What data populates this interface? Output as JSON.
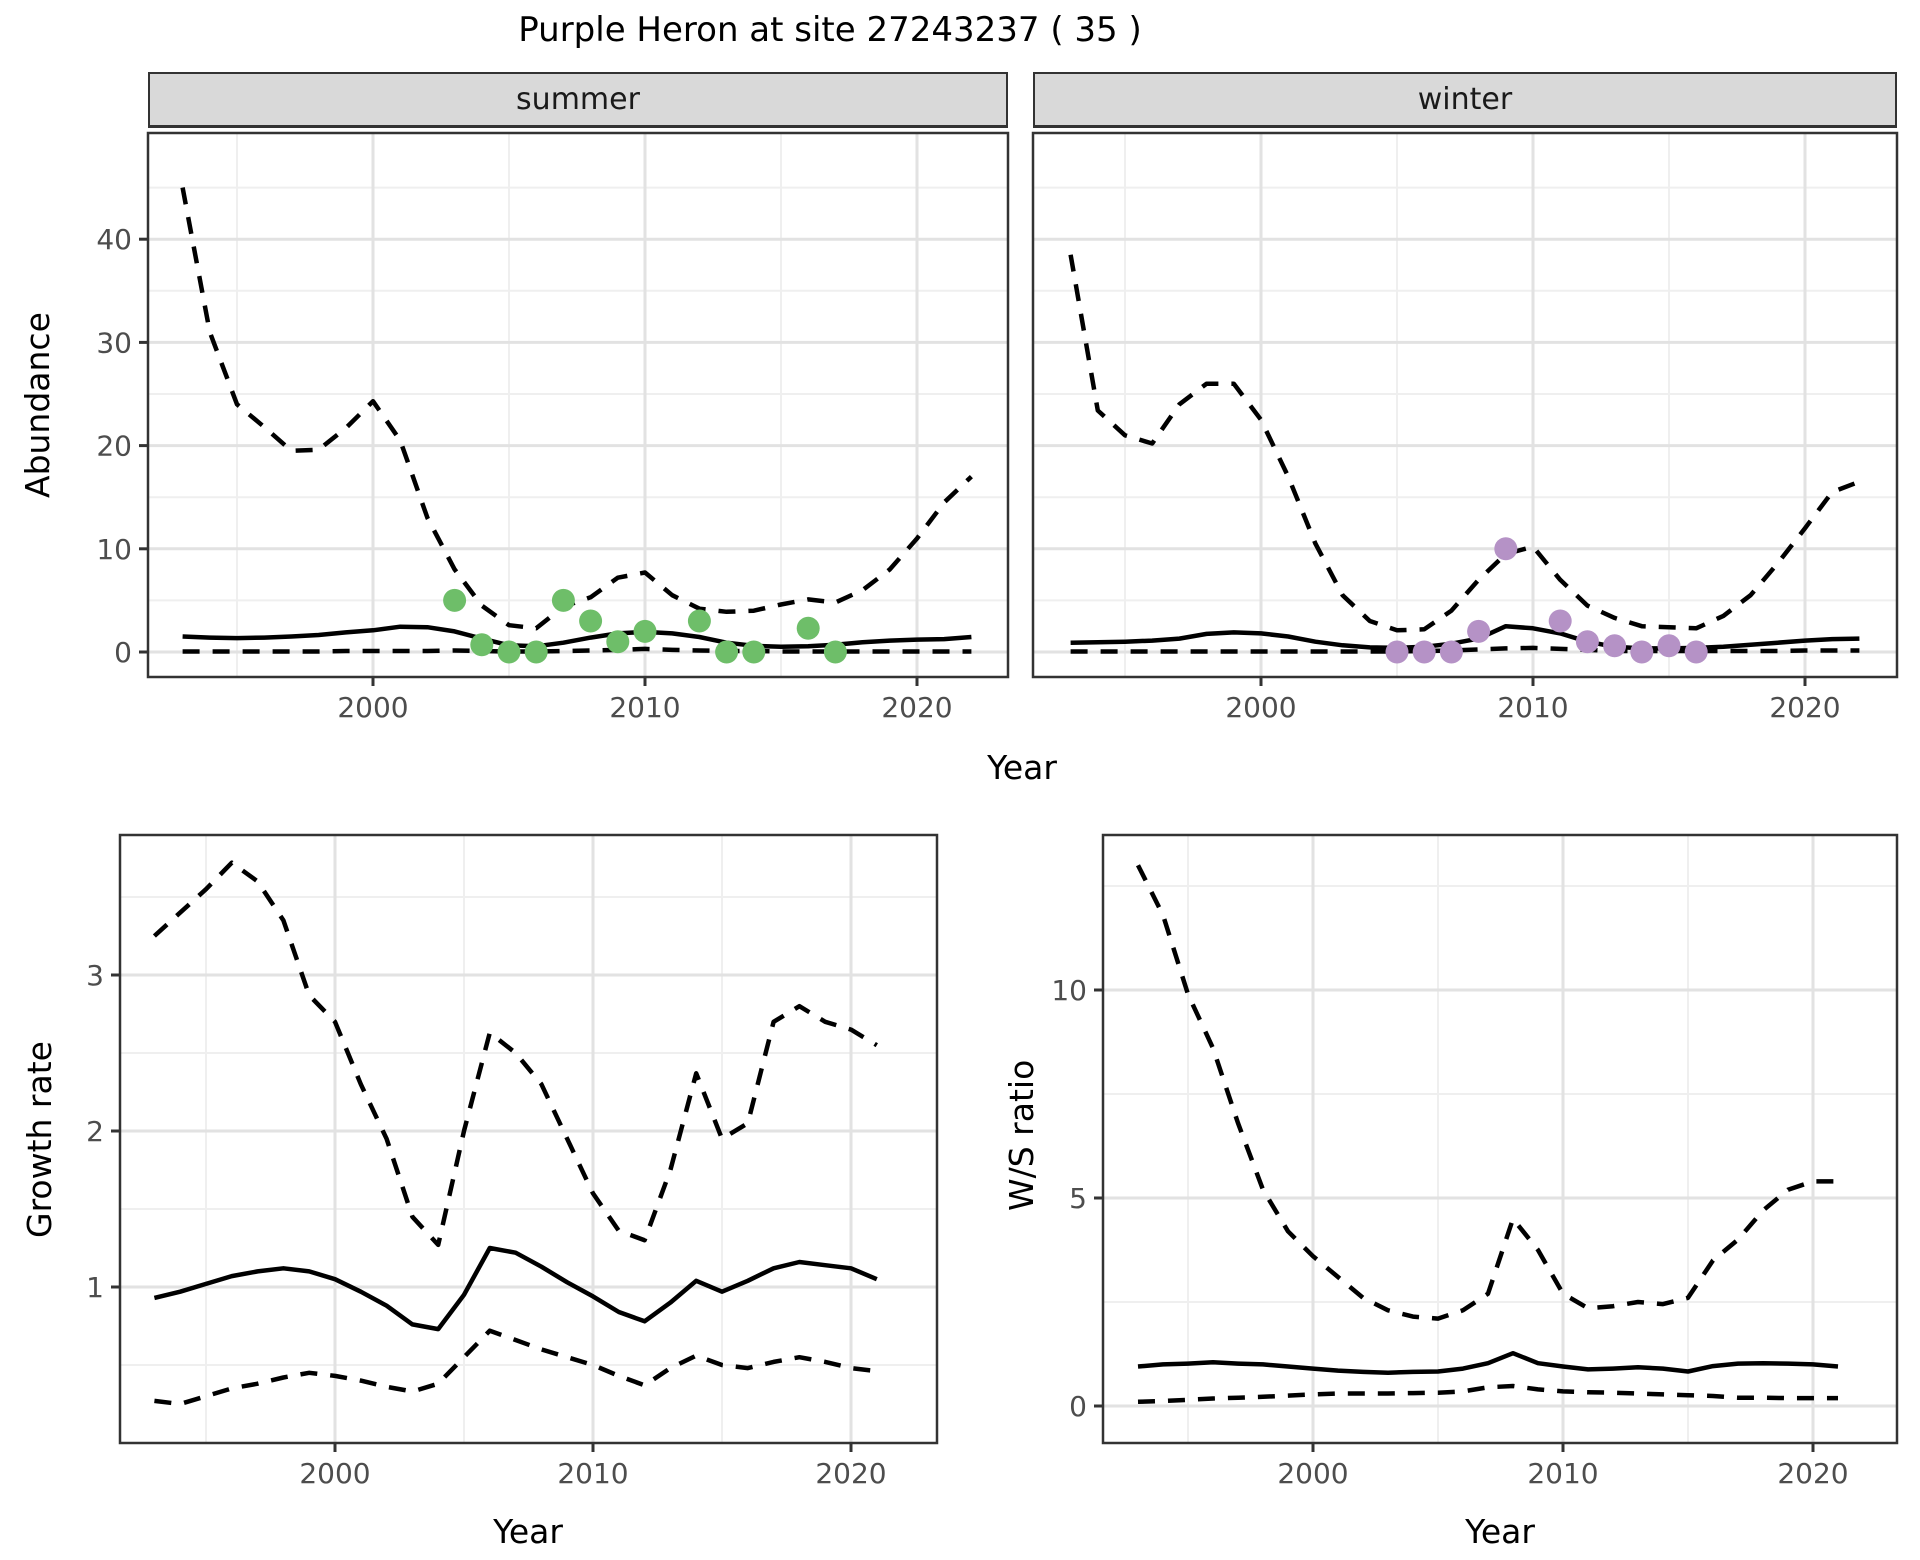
{
  "title": "Purple Heron at site 27243237 ( 35 )",
  "colors": {
    "summer_points": "#6ebe69",
    "winter_points": "#b592c6",
    "lines": "#000000",
    "strip_background": "#d9d9d9",
    "tick_text": "#4d4d4d"
  },
  "chart_data": [
    {
      "id": "abundance-summer",
      "type": "line",
      "facet_label": "summer",
      "ylabel": "Abundance",
      "xlabel": "Year",
      "xticks": [
        2000,
        2010,
        2020
      ],
      "yticks": [
        0,
        10,
        20,
        30,
        40
      ],
      "xticks_minor": [
        1995,
        2005,
        2015
      ],
      "yticks_minor": [
        5,
        15,
        25,
        35,
        45
      ],
      "xlim": [
        1991.7,
        2023.1
      ],
      "ylim": [
        -2.4,
        50.3
      ],
      "grid": true,
      "legend": "none",
      "x": [
        1993,
        1994,
        1995,
        1996,
        1997,
        1998,
        1999,
        2000,
        2001,
        2002,
        2003,
        2004,
        2005,
        2006,
        2007,
        2008,
        2009,
        2010,
        2011,
        2012,
        2013,
        2014,
        2015,
        2016,
        2017,
        2018,
        2019,
        2020,
        2021,
        2022
      ],
      "series": [
        {
          "name": "upper-ci",
          "style": "dashed",
          "values": [
            45,
            31,
            24,
            21.8,
            19.5,
            19.6,
            21.7,
            24.3,
            20.5,
            13,
            8,
            4.5,
            2.6,
            2.3,
            4.4,
            5.3,
            7.2,
            7.7,
            5.5,
            4.2,
            3.9,
            4.0,
            4.6,
            5.1,
            4.8,
            6.0,
            8.0,
            11.0,
            14.5,
            17.0
          ]
        },
        {
          "name": "mean",
          "style": "solid",
          "values": [
            1.5,
            1.4,
            1.35,
            1.4,
            1.5,
            1.65,
            1.9,
            2.1,
            2.45,
            2.4,
            2.0,
            1.3,
            0.65,
            0.55,
            0.9,
            1.4,
            1.8,
            1.95,
            1.8,
            1.45,
            0.9,
            0.6,
            0.5,
            0.55,
            0.7,
            0.95,
            1.1,
            1.2,
            1.25,
            1.45
          ]
        },
        {
          "name": "lower-ci",
          "style": "dashed",
          "values": [
            0.05,
            0.05,
            0.05,
            0.05,
            0.05,
            0.05,
            0.1,
            0.1,
            0.1,
            0.1,
            0.15,
            0.1,
            0.05,
            0.05,
            0.1,
            0.15,
            0.2,
            0.3,
            0.2,
            0.15,
            0.1,
            0.1,
            0.05,
            0.05,
            0.05,
            0.05,
            0.05,
            0.05,
            0.05,
            0.05
          ]
        }
      ],
      "points": {
        "name": "observed-counts",
        "color": "#6ebe69",
        "x": [
          2003,
          2004,
          2005,
          2006,
          2007,
          2008,
          2009,
          2010,
          2012,
          2013,
          2014,
          2016,
          2017
        ],
        "y": [
          5,
          0.7,
          0,
          0,
          5,
          3,
          1,
          2,
          3,
          0,
          0,
          2.3,
          0
        ]
      }
    },
    {
      "id": "abundance-winter",
      "type": "line",
      "facet_label": "winter",
      "ylabel": "Abundance",
      "xlabel": "Year",
      "xticks": [
        2000,
        2010,
        2020
      ],
      "yticks": [
        0,
        10,
        20,
        30,
        40
      ],
      "xticks_minor": [
        1995,
        2005,
        2015
      ],
      "yticks_minor": [
        5,
        15,
        25,
        35,
        45
      ],
      "xlim": [
        1991.7,
        2023.1
      ],
      "ylim": [
        -2.4,
        50.3
      ],
      "grid": true,
      "legend": "none",
      "x": [
        1993,
        1994,
        1995,
        1996,
        1997,
        1998,
        1999,
        2000,
        2001,
        2002,
        2003,
        2004,
        2005,
        2006,
        2007,
        2008,
        2009,
        2010,
        2011,
        2012,
        2013,
        2014,
        2015,
        2016,
        2017,
        2018,
        2019,
        2020,
        2021,
        2022
      ],
      "series": [
        {
          "name": "upper-ci",
          "style": "dashed",
          "values": [
            38.5,
            23.4,
            21,
            20.2,
            24,
            26,
            26,
            22.5,
            17,
            10.5,
            5.5,
            3,
            2.1,
            2.2,
            4,
            7,
            9.5,
            10.2,
            7,
            4.5,
            3.3,
            2.5,
            2.4,
            2.3,
            3.5,
            5.5,
            8.6,
            12,
            15.5,
            16.5
          ]
        },
        {
          "name": "mean",
          "style": "solid",
          "values": [
            0.9,
            0.95,
            1.0,
            1.1,
            1.3,
            1.75,
            1.9,
            1.8,
            1.5,
            1.0,
            0.65,
            0.45,
            0.4,
            0.5,
            0.8,
            1.3,
            2.5,
            2.3,
            1.8,
            1.0,
            0.5,
            0.35,
            0.35,
            0.4,
            0.5,
            0.7,
            0.9,
            1.1,
            1.25,
            1.3
          ]
        },
        {
          "name": "lower-ci",
          "style": "dashed",
          "values": [
            0.05,
            0.05,
            0.05,
            0.05,
            0.05,
            0.05,
            0.05,
            0.05,
            0.05,
            0.05,
            0.05,
            0.05,
            0.05,
            0.1,
            0.15,
            0.25,
            0.35,
            0.4,
            0.3,
            0.2,
            0.1,
            0.1,
            0.1,
            0.1,
            0.1,
            0.1,
            0.1,
            0.15,
            0.15,
            0.15
          ]
        }
      ],
      "points": {
        "name": "observed-counts",
        "color": "#b592c6",
        "x": [
          2005,
          2006,
          2007,
          2008,
          2009,
          2011,
          2012,
          2013,
          2014,
          2015,
          2016
        ],
        "y": [
          0,
          0,
          0,
          2,
          10,
          3,
          1,
          0.6,
          0,
          0.6,
          0
        ]
      }
    },
    {
      "id": "growth-rate",
      "type": "line",
      "facet_label": "",
      "ylabel": "Growth rate",
      "xlabel": "Year",
      "xticks": [
        2000,
        2010,
        2020
      ],
      "yticks": [
        1,
        2,
        3
      ],
      "xticks_minor": [
        1995,
        2005,
        2015
      ],
      "yticks_minor": [
        0.5,
        1.5,
        2.5,
        3.5
      ],
      "xlim": [
        1991.7,
        2023.3
      ],
      "ylim": [
        0.0,
        3.9
      ],
      "grid": true,
      "legend": "none",
      "x": [
        1993,
        1994,
        1995,
        1996,
        1997,
        1998,
        1999,
        2000,
        2001,
        2002,
        2003,
        2004,
        2005,
        2006,
        2007,
        2008,
        2009,
        2010,
        2011,
        2012,
        2013,
        2014,
        2015,
        2016,
        2017,
        2018,
        2019,
        2020,
        2021
      ],
      "series": [
        {
          "name": "upper-ci",
          "style": "dashed",
          "values": [
            3.25,
            3.4,
            3.55,
            3.72,
            3.6,
            3.35,
            2.87,
            2.7,
            2.3,
            1.95,
            1.45,
            1.27,
            2.0,
            2.63,
            2.5,
            2.3,
            1.95,
            1.6,
            1.36,
            1.3,
            1.75,
            2.37,
            1.95,
            2.05,
            2.7,
            2.8,
            2.7,
            2.65,
            2.55
          ]
        },
        {
          "name": "mean",
          "style": "solid",
          "values": [
            0.93,
            0.97,
            1.02,
            1.07,
            1.1,
            1.12,
            1.1,
            1.05,
            0.97,
            0.88,
            0.76,
            0.73,
            0.95,
            1.25,
            1.22,
            1.13,
            1.03,
            0.94,
            0.84,
            0.78,
            0.9,
            1.04,
            0.97,
            1.04,
            1.12,
            1.16,
            1.14,
            1.12,
            1.05
          ]
        },
        {
          "name": "lower-ci",
          "style": "dashed",
          "values": [
            0.27,
            0.25,
            0.3,
            0.35,
            0.38,
            0.42,
            0.45,
            0.43,
            0.4,
            0.36,
            0.33,
            0.38,
            0.55,
            0.72,
            0.66,
            0.6,
            0.55,
            0.5,
            0.43,
            0.37,
            0.48,
            0.56,
            0.5,
            0.48,
            0.52,
            0.55,
            0.52,
            0.48,
            0.46
          ]
        }
      ],
      "points": null
    },
    {
      "id": "ws-ratio",
      "type": "line",
      "facet_label": "",
      "ylabel": "W/S ratio",
      "xlabel": "Year",
      "xticks": [
        2000,
        2010,
        2020
      ],
      "yticks": [
        0,
        5,
        10
      ],
      "xticks_minor": [
        1995,
        2005,
        2015
      ],
      "yticks_minor": [
        2.5,
        7.5,
        12.5
      ],
      "xlim": [
        1991.6,
        2023.4
      ],
      "ylim": [
        -0.9,
        13.7
      ],
      "grid": true,
      "legend": "none",
      "x": [
        1993,
        1994,
        1995,
        1996,
        1997,
        1998,
        1999,
        2000,
        2001,
        2002,
        2003,
        2004,
        2005,
        2006,
        2007,
        2008,
        2009,
        2010,
        2011,
        2012,
        2013,
        2014,
        2015,
        2016,
        2017,
        2018,
        2019,
        2020,
        2021
      ],
      "series": [
        {
          "name": "upper-ci",
          "style": "dashed",
          "values": [
            13,
            11.8,
            9.9,
            8.6,
            6.8,
            5.2,
            4.2,
            3.6,
            3.1,
            2.6,
            2.3,
            2.15,
            2.1,
            2.3,
            2.7,
            4.5,
            3.75,
            2.7,
            2.35,
            2.4,
            2.5,
            2.45,
            2.6,
            3.5,
            4.0,
            4.7,
            5.2,
            5.4,
            5.4
          ]
        },
        {
          "name": "mean",
          "style": "solid",
          "values": [
            0.95,
            1.0,
            1.02,
            1.05,
            1.02,
            1.0,
            0.95,
            0.9,
            0.85,
            0.82,
            0.8,
            0.82,
            0.83,
            0.9,
            1.03,
            1.27,
            1.03,
            0.95,
            0.88,
            0.9,
            0.93,
            0.9,
            0.83,
            0.96,
            1.02,
            1.03,
            1.02,
            1.0,
            0.95
          ]
        },
        {
          "name": "lower-ci",
          "style": "dashed",
          "values": [
            0.1,
            0.12,
            0.15,
            0.18,
            0.2,
            0.22,
            0.25,
            0.28,
            0.3,
            0.3,
            0.3,
            0.31,
            0.32,
            0.35,
            0.45,
            0.48,
            0.4,
            0.35,
            0.33,
            0.32,
            0.3,
            0.28,
            0.26,
            0.24,
            0.2,
            0.2,
            0.19,
            0.19,
            0.19
          ]
        }
      ],
      "points": null
    }
  ]
}
